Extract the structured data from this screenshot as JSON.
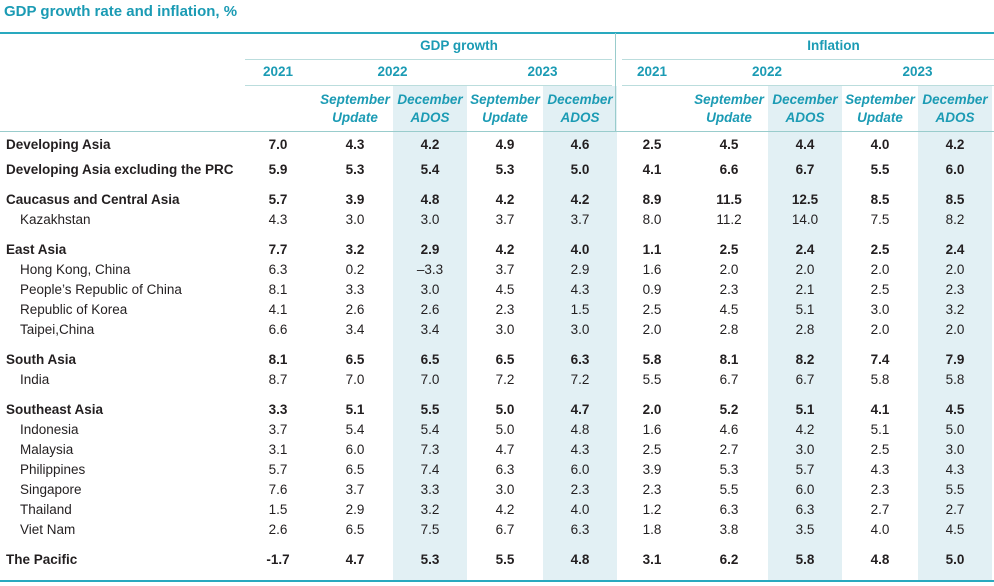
{
  "title": "GDP growth rate and inflation, %",
  "header": {
    "groups": [
      {
        "label": "GDP growth",
        "years": [
          "2021",
          "2022",
          "2023"
        ]
      },
      {
        "label": "Inflation",
        "years": [
          "2021",
          "2022",
          "2023"
        ]
      }
    ],
    "subcolumns": [
      "September Update",
      "December ADOS"
    ]
  },
  "rows": [
    {
      "label": "Developing Asia",
      "kind": "aggregate",
      "values": [
        "7.0",
        "4.3",
        "4.2",
        "4.9",
        "4.6",
        "2.5",
        "4.5",
        "4.4",
        "4.0",
        "4.2"
      ]
    },
    {
      "label": "Developing Asia excluding the PRC",
      "kind": "aggregate",
      "values": [
        "5.9",
        "5.3",
        "5.4",
        "5.3",
        "5.0",
        "4.1",
        "6.6",
        "6.7",
        "5.5",
        "6.0"
      ]
    },
    {
      "label": "Caucasus and Central Asia",
      "kind": "region",
      "values": [
        "5.7",
        "3.9",
        "4.8",
        "4.2",
        "4.2",
        "8.9",
        "11.5",
        "12.5",
        "8.5",
        "8.5"
      ]
    },
    {
      "label": "Kazakhstan",
      "kind": "economy",
      "values": [
        "4.3",
        "3.0",
        "3.0",
        "3.7",
        "3.7",
        "8.0",
        "11.2",
        "14.0",
        "7.5",
        "8.2"
      ]
    },
    {
      "label": "East Asia",
      "kind": "region",
      "values": [
        "7.7",
        "3.2",
        "2.9",
        "4.2",
        "4.0",
        "1.1",
        "2.5",
        "2.4",
        "2.5",
        "2.4"
      ]
    },
    {
      "label": "Hong Kong, China",
      "kind": "economy",
      "values": [
        "6.3",
        "0.2",
        "–3.3",
        "3.7",
        "2.9",
        "1.6",
        "2.0",
        "2.0",
        "2.0",
        "2.0"
      ]
    },
    {
      "label": "People’s Republic of China",
      "kind": "economy",
      "values": [
        "8.1",
        "3.3",
        "3.0",
        "4.5",
        "4.3",
        "0.9",
        "2.3",
        "2.1",
        "2.5",
        "2.3"
      ]
    },
    {
      "label": "Republic of Korea",
      "kind": "economy",
      "values": [
        "4.1",
        "2.6",
        "2.6",
        "2.3",
        "1.5",
        "2.5",
        "4.5",
        "5.1",
        "3.0",
        "3.2"
      ]
    },
    {
      "label": "Taipei,China",
      "kind": "economy",
      "values": [
        "6.6",
        "3.4",
        "3.4",
        "3.0",
        "3.0",
        "2.0",
        "2.8",
        "2.8",
        "2.0",
        "2.0"
      ]
    },
    {
      "label": "South Asia",
      "kind": "region",
      "values": [
        "8.1",
        "6.5",
        "6.5",
        "6.5",
        "6.3",
        "5.8",
        "8.1",
        "8.2",
        "7.4",
        "7.9"
      ]
    },
    {
      "label": "India",
      "kind": "economy",
      "values": [
        "8.7",
        "7.0",
        "7.0",
        "7.2",
        "7.2",
        "5.5",
        "6.7",
        "6.7",
        "5.8",
        "5.8"
      ]
    },
    {
      "label": "Southeast Asia",
      "kind": "region",
      "values": [
        "3.3",
        "5.1",
        "5.5",
        "5.0",
        "4.7",
        "2.0",
        "5.2",
        "5.1",
        "4.1",
        "4.5"
      ]
    },
    {
      "label": "Indonesia",
      "kind": "economy",
      "values": [
        "3.7",
        "5.4",
        "5.4",
        "5.0",
        "4.8",
        "1.6",
        "4.6",
        "4.2",
        "5.1",
        "5.0"
      ]
    },
    {
      "label": "Malaysia",
      "kind": "economy",
      "values": [
        "3.1",
        "6.0",
        "7.3",
        "4.7",
        "4.3",
        "2.5",
        "2.7",
        "3.0",
        "2.5",
        "3.0"
      ]
    },
    {
      "label": "Philippines",
      "kind": "economy",
      "values": [
        "5.7",
        "6.5",
        "7.4",
        "6.3",
        "6.0",
        "3.9",
        "5.3",
        "5.7",
        "4.3",
        "4.3"
      ]
    },
    {
      "label": "Singapore",
      "kind": "economy",
      "values": [
        "7.6",
        "3.7",
        "3.3",
        "3.0",
        "2.3",
        "2.3",
        "5.5",
        "6.0",
        "2.3",
        "5.5"
      ]
    },
    {
      "label": "Thailand",
      "kind": "economy",
      "values": [
        "1.5",
        "2.9",
        "3.2",
        "4.2",
        "4.0",
        "1.2",
        "6.3",
        "6.3",
        "2.7",
        "2.7"
      ]
    },
    {
      "label": "Viet Nam",
      "kind": "economy",
      "values": [
        "2.6",
        "6.5",
        "7.5",
        "6.7",
        "6.3",
        "1.8",
        "3.8",
        "3.5",
        "4.0",
        "4.5"
      ]
    },
    {
      "label": "The Pacific",
      "kind": "region",
      "values": [
        "-1.7",
        "4.7",
        "5.3",
        "5.5",
        "4.8",
        "3.1",
        "6.2",
        "5.8",
        "4.8",
        "5.0"
      ]
    }
  ]
}
